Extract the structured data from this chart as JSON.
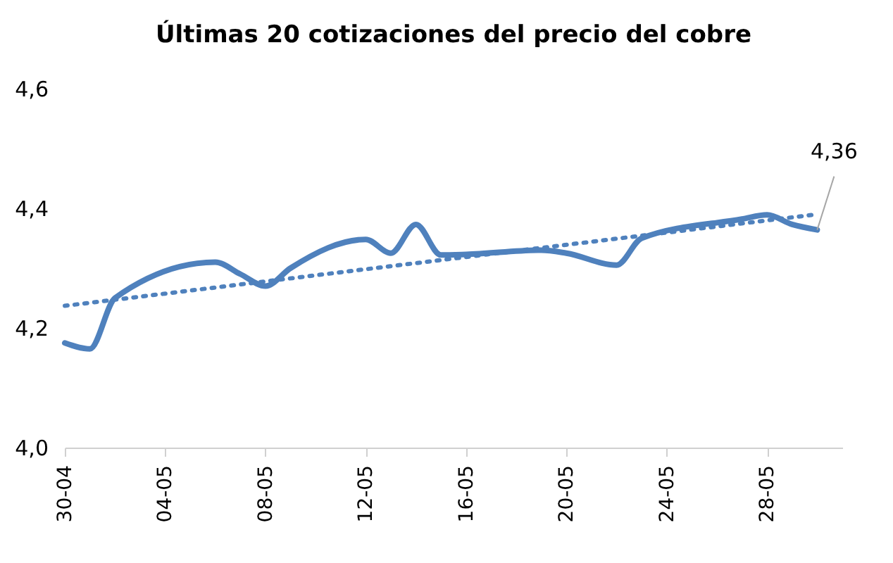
{
  "chart_data": {
    "type": "line",
    "title": "Últimas 20 cotizaciones del precio del cobre",
    "x": [
      "--04-30",
      "--05-01",
      "--05-02",
      "--05-06",
      "--05-07",
      "--05-08",
      "--05-09",
      "--05-12",
      "--05-13",
      "--05-14",
      "--05-15",
      "--05-16",
      "--05-19",
      "--05-20",
      "--05-22",
      "--05-23",
      "--05-27",
      "--05-28",
      "--05-29",
      "--05-30"
    ],
    "series": [
      {
        "color": "#4f81bd",
        "line_style": "solid",
        "values": [
          4.175,
          4.165,
          4.25,
          4.31,
          4.29,
          4.27,
          4.3,
          4.348,
          4.325,
          4.373,
          4.322,
          4.323,
          4.33,
          4.325,
          4.305,
          4.35,
          4.382,
          4.389,
          4.373,
          4.364
        ]
      },
      {
        "type": "line",
        "color": "#4f81bd",
        "line_style": "dotted",
        "x": [
          "--04-30",
          "--05-30"
        ],
        "values": [
          4.237,
          4.39
        ]
      }
    ],
    "xlim": [
      "--04-30",
      "--05-31"
    ],
    "xticks": [
      {
        "value": "--04-30",
        "label": "30-04"
      },
      {
        "value": "--05-04",
        "label": "04-05"
      },
      {
        "value": "--05-08",
        "label": "08-05"
      },
      {
        "value": "--05-12",
        "label": "12-05"
      },
      {
        "value": "--05-16",
        "label": "16-05"
      },
      {
        "value": "--05-20",
        "label": "20-05"
      },
      {
        "value": "--05-24",
        "label": "24-05"
      },
      {
        "value": "--05-28",
        "label": "28-05"
      }
    ],
    "ylim": [
      4.0,
      4.6
    ],
    "yticks": [
      {
        "value": 4.0,
        "label": "4,0"
      },
      {
        "value": 4.2,
        "label": "4,2"
      },
      {
        "value": 4.4,
        "label": "4,4"
      },
      {
        "value": 4.6,
        "label": "4,6"
      }
    ],
    "annotations": [
      {
        "text": "4,36",
        "x": "--05-30",
        "y": 4.364
      }
    ]
  }
}
